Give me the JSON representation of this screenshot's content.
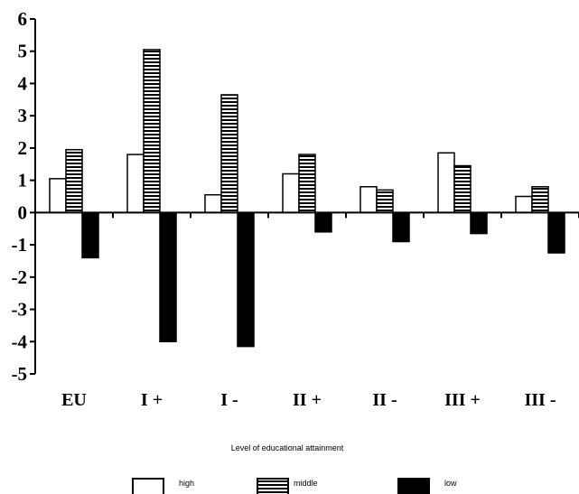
{
  "chart_data": {
    "type": "bar",
    "categories": [
      "EU",
      "I +",
      "I -",
      "II +",
      "II -",
      "III +",
      "III -"
    ],
    "series": [
      {
        "name": "high",
        "values": [
          1.05,
          1.8,
          0.55,
          1.2,
          0.8,
          1.85,
          0.5
        ],
        "fill": "#ffffff",
        "pattern": "none"
      },
      {
        "name": "middle",
        "values": [
          1.95,
          5.05,
          3.65,
          1.8,
          0.7,
          1.45,
          0.8
        ],
        "fill": "#ffffff",
        "pattern": "horizontal-stripes"
      },
      {
        "name": "low",
        "values": [
          -1.4,
          -4.0,
          -4.15,
          -0.6,
          -0.9,
          -0.65,
          -1.25
        ],
        "fill": "#000000",
        "pattern": "none"
      }
    ],
    "xlabel": "Level of educational attainment",
    "ylabel": "",
    "ylim": [
      -5,
      6
    ],
    "yticks": [
      "6",
      "5",
      "4",
      "3",
      "2",
      "1",
      "0",
      "-1",
      "-2",
      "-3",
      "-4",
      "-5"
    ],
    "grid": false,
    "legend_position": "bottom"
  }
}
